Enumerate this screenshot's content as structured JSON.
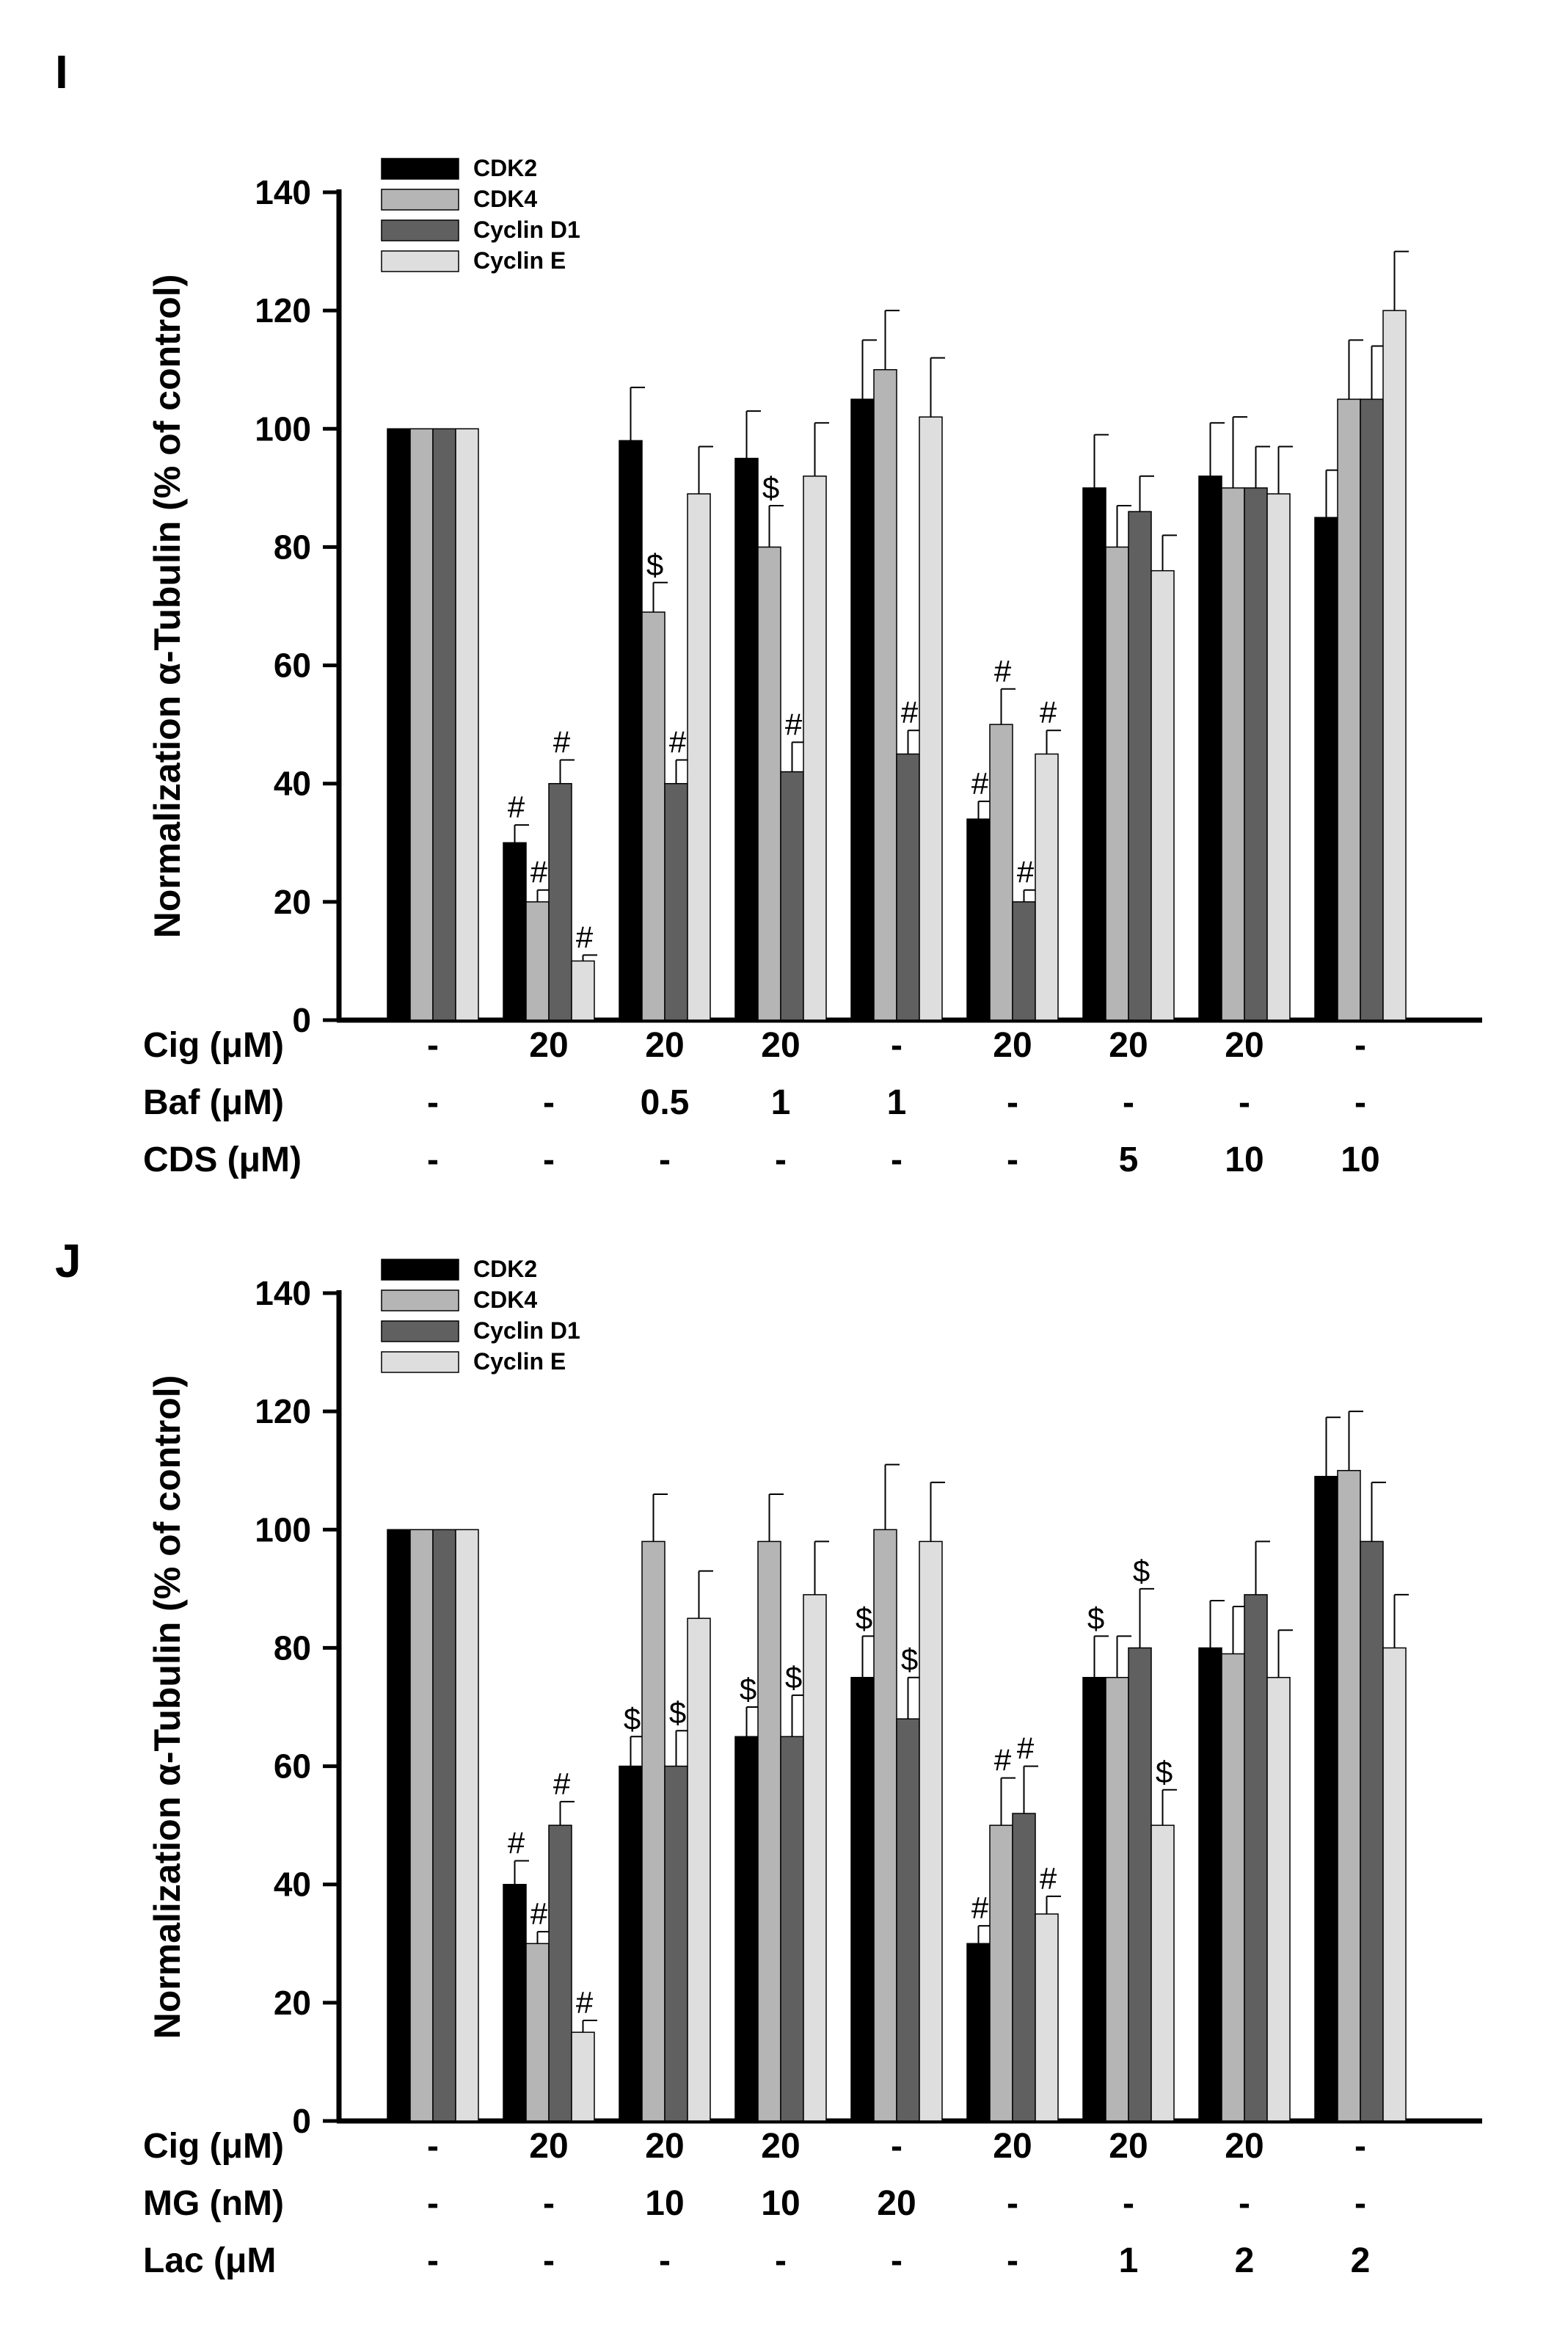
{
  "chart_data": [
    {
      "type": "bar",
      "panel_label": "I",
      "ylabel": "Normalization α-Tubulin (% of control)",
      "ylim": [
        0,
        140
      ],
      "yticks": [
        "0",
        "20",
        "40",
        "60",
        "80",
        "100",
        "120",
        "140"
      ],
      "legend": [
        "CDK2",
        "CDK4",
        "Cyclin D1",
        "Cyclin E"
      ],
      "legend_position": "top-left",
      "colors": [
        "#000000",
        "#b5b5b5",
        "#606060",
        "#dedede"
      ],
      "series": [
        {
          "name": "CDK2",
          "values": [
            100,
            30,
            98,
            95,
            105,
            34,
            90,
            92,
            85
          ],
          "errors": [
            0,
            3,
            9,
            8,
            10,
            3,
            9,
            9,
            8
          ]
        },
        {
          "name": "CDK4",
          "values": [
            100,
            20,
            69,
            80,
            110,
            50,
            80,
            90,
            105
          ],
          "errors": [
            0,
            2,
            5,
            7,
            10,
            6,
            7,
            12,
            10
          ]
        },
        {
          "name": "Cyclin D1",
          "values": [
            100,
            40,
            40,
            42,
            45,
            20,
            86,
            90,
            105
          ],
          "errors": [
            0,
            4,
            4,
            5,
            4,
            2,
            6,
            7,
            9
          ]
        },
        {
          "name": "Cyclin E",
          "values": [
            100,
            10,
            89,
            92,
            102,
            45,
            76,
            89,
            120
          ],
          "errors": [
            0,
            1,
            8,
            9,
            10,
            4,
            6,
            8,
            10
          ]
        }
      ],
      "annotations": [
        [
          "",
          "",
          "",
          ""
        ],
        [
          "#",
          "#",
          "#",
          "#"
        ],
        [
          "",
          "$",
          "#",
          ""
        ],
        [
          "",
          "$",
          "#",
          ""
        ],
        [
          "",
          "",
          "#",
          ""
        ],
        [
          "#",
          "#",
          "#",
          "#"
        ],
        [
          "",
          "",
          "",
          ""
        ],
        [
          "",
          "",
          "",
          ""
        ],
        [
          "",
          "",
          "",
          ""
        ]
      ],
      "conditions": [
        {
          "label": "Cig (μM)",
          "values": [
            "-",
            "20",
            "20",
            "20",
            "-",
            "20",
            "20",
            "20",
            "-"
          ]
        },
        {
          "label": "Baf (μM)",
          "values": [
            "-",
            "-",
            "0.5",
            "1",
            "1",
            "-",
            "-",
            "-",
            "-"
          ]
        },
        {
          "label": "CDS (μM)",
          "values": [
            "-",
            "-",
            "-",
            "-",
            "-",
            "-",
            "5",
            "10",
            "10"
          ]
        }
      ]
    },
    {
      "type": "bar",
      "panel_label": "J",
      "ylabel": "Normalization α-Tubulin (% of control)",
      "ylim": [
        0,
        140
      ],
      "yticks": [
        "0",
        "20",
        "40",
        "60",
        "80",
        "100",
        "120",
        "140"
      ],
      "legend": [
        "CDK2",
        "CDK4",
        "Cyclin D1",
        "Cyclin E"
      ],
      "legend_position": "top-left",
      "colors": [
        "#000000",
        "#b5b5b5",
        "#606060",
        "#dedede"
      ],
      "series": [
        {
          "name": "CDK2",
          "values": [
            100,
            40,
            60,
            65,
            75,
            30,
            75,
            80,
            109
          ],
          "errors": [
            0,
            4,
            5,
            5,
            7,
            3,
            7,
            8,
            10
          ]
        },
        {
          "name": "CDK4",
          "values": [
            100,
            30,
            98,
            98,
            100,
            50,
            75,
            79,
            110
          ],
          "errors": [
            0,
            2,
            8,
            8,
            11,
            8,
            7,
            8,
            10
          ]
        },
        {
          "name": "Cyclin D1",
          "values": [
            100,
            50,
            60,
            65,
            68,
            52,
            80,
            89,
            98
          ],
          "errors": [
            0,
            4,
            6,
            7,
            7,
            8,
            10,
            9,
            10
          ]
        },
        {
          "name": "Cyclin E",
          "values": [
            100,
            15,
            85,
            89,
            98,
            35,
            50,
            75,
            80
          ],
          "errors": [
            0,
            2,
            8,
            9,
            10,
            3,
            6,
            8,
            9
          ]
        }
      ],
      "annotations": [
        [
          "",
          "",
          "",
          ""
        ],
        [
          "#",
          "#",
          "#",
          "#"
        ],
        [
          "$",
          "",
          "$",
          ""
        ],
        [
          "$",
          "",
          "$",
          ""
        ],
        [
          "$",
          "",
          "$",
          ""
        ],
        [
          "#",
          "#",
          "#",
          "#"
        ],
        [
          "$",
          "",
          "$",
          "$"
        ],
        [
          "",
          "",
          "",
          ""
        ],
        [
          "",
          "",
          "",
          ""
        ]
      ],
      "conditions": [
        {
          "label": "Cig (μM)",
          "values": [
            "-",
            "20",
            "20",
            "20",
            "-",
            "20",
            "20",
            "20",
            "-"
          ]
        },
        {
          "label": "MG (nM)",
          "values": [
            "-",
            "-",
            "10",
            "10",
            "20",
            "-",
            "-",
            "-",
            "-"
          ]
        },
        {
          "label": "Lac (μM",
          "values": [
            "-",
            "-",
            "-",
            "-",
            "-",
            "-",
            "1",
            "2",
            "2"
          ]
        }
      ]
    }
  ]
}
